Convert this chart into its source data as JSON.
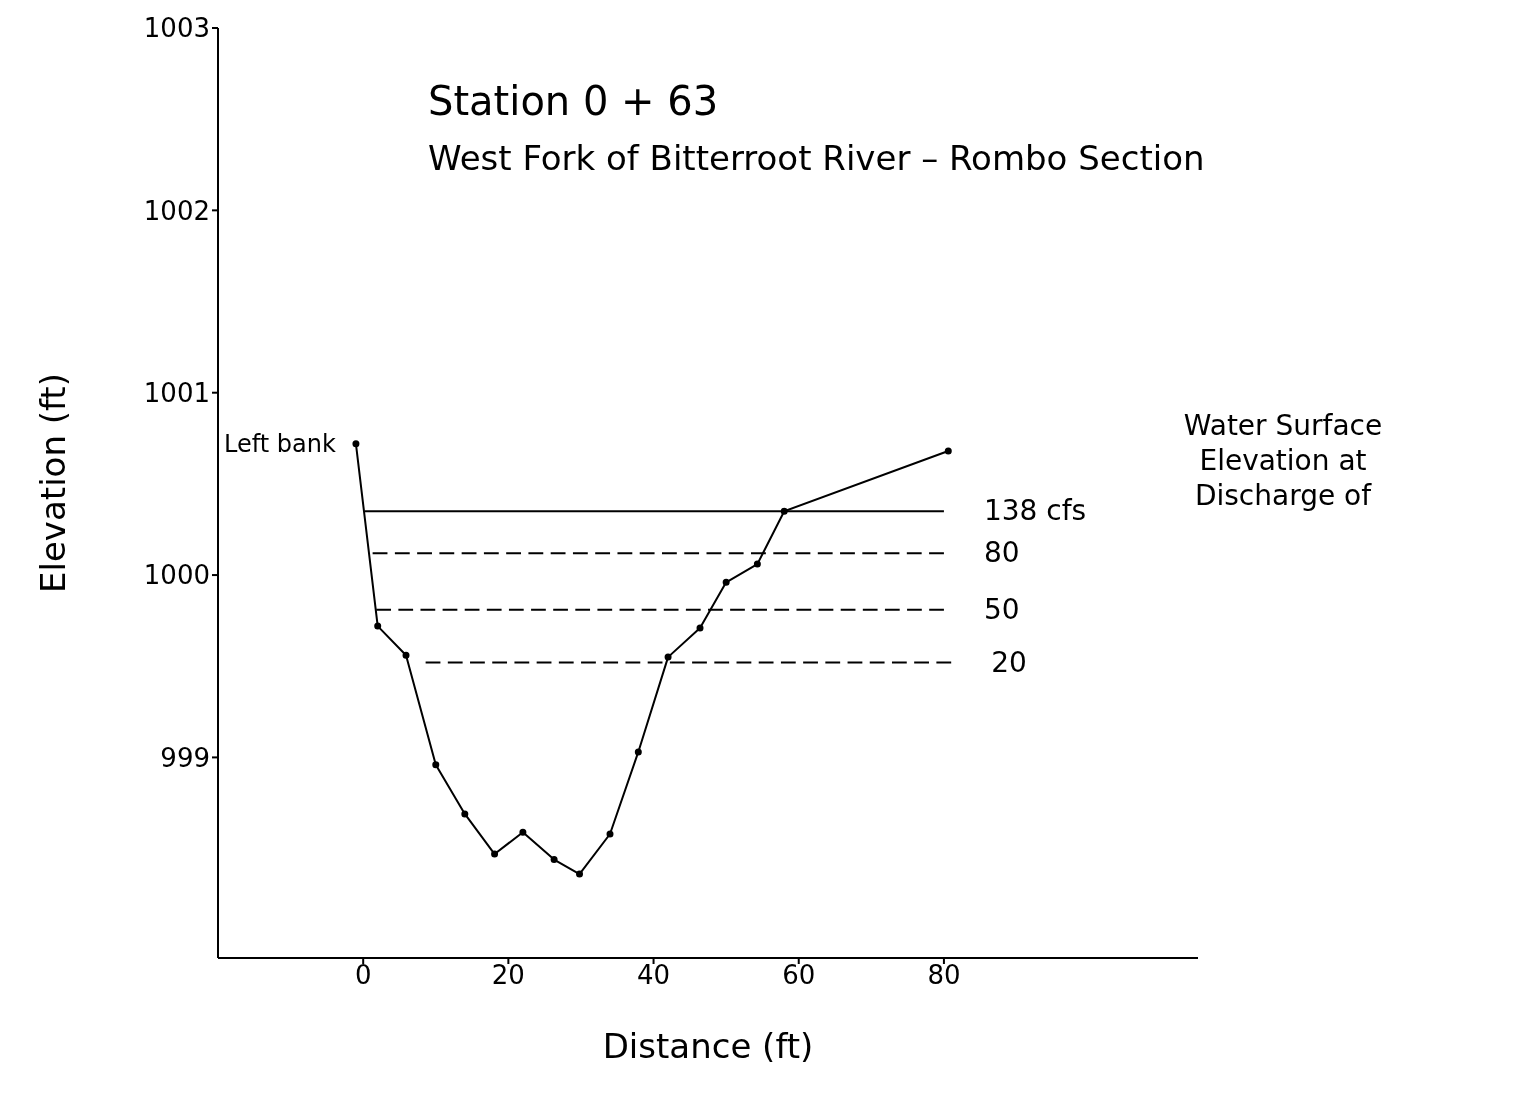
{
  "chart_data": {
    "type": "line",
    "title": "Station 0 + 63",
    "subtitle": "West Fork of Bitterroot River – Rombo Section",
    "xlabel": "Distance (ft)",
    "ylabel": "Elevation (ft)",
    "annotations": [
      {
        "text": "Left bank",
        "x": -1,
        "y": 1000.72
      },
      "Water Surface Elevation at Discharge of"
    ],
    "xlim": [
      -20,
      115
    ],
    "xticks": [
      0,
      20,
      40,
      60,
      80
    ],
    "ylim": [
      997.9,
      1003
    ],
    "yticks": [
      999,
      1000,
      1001,
      1002,
      1003
    ],
    "grid": false,
    "legend": false,
    "marker": "circle",
    "line_style": "solid",
    "series": [
      {
        "color": "#000000",
        "x": [
          -1,
          2,
          5.9,
          10,
          14,
          18.1,
          22,
          26.3,
          29.8,
          34,
          37.9,
          42,
          46.4,
          50,
          54.3,
          58,
          80.6
        ],
        "values": [
          1000.72,
          999.72,
          999.56,
          998.96,
          998.69,
          998.47,
          998.59,
          998.44,
          998.36,
          998.58,
          999.03,
          999.55,
          999.71,
          999.96,
          1000.06,
          1000.35,
          1000.68
        ]
      },
      {
        "name": "138 cfs",
        "color": "#000000",
        "marker": "none",
        "line_style": "solid",
        "x": [
          0.2,
          80
        ],
        "values": [
          1000.35,
          1000.35
        ]
      },
      {
        "name": "80",
        "color": "#000000",
        "marker": "none",
        "line_style": "dashed",
        "x": [
          1.3,
          80
        ],
        "values": [
          1000.12,
          1000.12
        ]
      },
      {
        "name": "50",
        "color": "#000000",
        "marker": "none",
        "line_style": "dashed",
        "x": [
          1.8,
          80
        ],
        "values": [
          999.81,
          999.81
        ]
      },
      {
        "name": "20",
        "color": "#000000",
        "marker": "none",
        "line_style": "dashed",
        "x": [
          8.6,
          81
        ],
        "values": [
          999.52,
          999.52
        ]
      }
    ]
  }
}
